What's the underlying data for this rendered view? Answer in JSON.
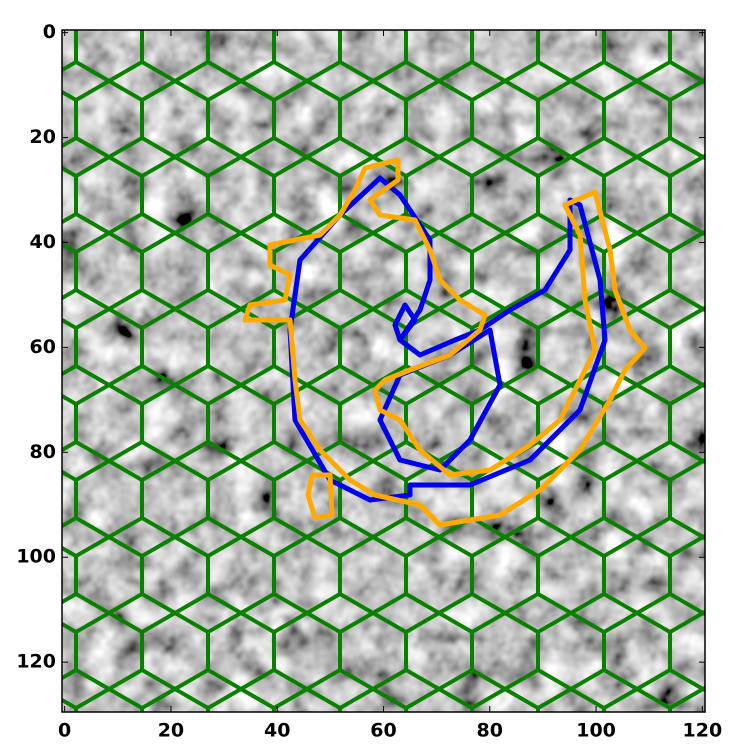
{
  "chart_data": {
    "type": "image",
    "xlim": [
      -0.5,
      120.5
    ],
    "ylim": [
      129.5,
      -0.5
    ],
    "xticks": [
      0,
      20,
      40,
      60,
      80,
      100,
      120
    ],
    "yticks": [
      0,
      20,
      40,
      60,
      80,
      100,
      120
    ],
    "contour_colors": [
      "#0a8000",
      "#0000ee",
      "#ffaa00"
    ]
  }
}
